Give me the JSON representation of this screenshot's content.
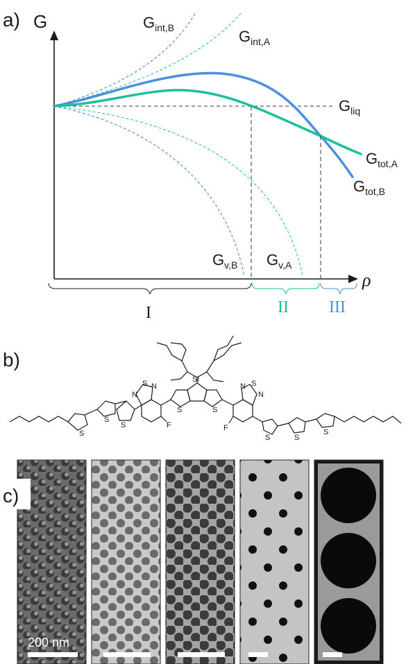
{
  "panel_a": {
    "panel_label": "a)",
    "y_axis_label": "G",
    "x_axis_label": "ρ",
    "curve_labels": {
      "gint_b": {
        "main": "G",
        "sub": "int,B"
      },
      "gint_a": {
        "main": "G",
        "sub": "int,A"
      },
      "gliq": {
        "main": "G",
        "sub": "liq"
      },
      "gtot_a": {
        "main": "G",
        "sub": "tot,A"
      },
      "gtot_b": {
        "main": "G",
        "sub": "tot,B"
      },
      "gv_b": {
        "main": "G",
        "sub": "v,B"
      },
      "gv_a": {
        "main": "G",
        "sub": "v,A"
      }
    },
    "regions": [
      "I",
      "II",
      "III"
    ],
    "colors": {
      "series_a": "#1bbf9a",
      "series_b": "#4a90e2",
      "axis": "#1a1a1a"
    }
  },
  "panel_b": {
    "panel_label": "b)",
    "atoms": {
      "si": "Si",
      "s": "S",
      "n": "N",
      "f": "F"
    }
  },
  "panel_c": {
    "panel_label": "c)",
    "scale_bar_label": "200 nm",
    "images": [
      "sem-1",
      "sem-2",
      "sem-3",
      "sem-4",
      "sem-5"
    ]
  }
}
